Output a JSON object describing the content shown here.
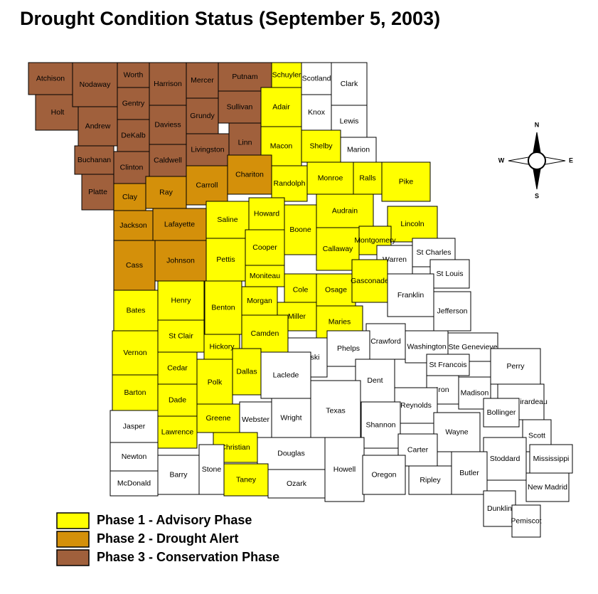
{
  "title": "Drought  Condition Status (September 5, 2003)",
  "base_color": "#ffffff",
  "legend": [
    {
      "label": "Phase 1 - Advisory Phase",
      "color": "#ffff00"
    },
    {
      "label": "Phase 2 - Drought Alert",
      "color": "#d4900a"
    },
    {
      "label": "Phase 3 - Conservation Phase",
      "color": "#a0603c"
    }
  ],
  "compass": {
    "n": "N",
    "s": "S",
    "e": "E",
    "w": "W"
  },
  "counties": [
    {
      "name": "Atchison",
      "phase": 3
    },
    {
      "name": "Holt",
      "phase": 3
    },
    {
      "name": "Nodaway",
      "phase": 3
    },
    {
      "name": "Worth",
      "phase": 3
    },
    {
      "name": "Gentry",
      "phase": 3
    },
    {
      "name": "Harrison",
      "phase": 3
    },
    {
      "name": "Mercer",
      "phase": 3
    },
    {
      "name": "Putnam",
      "phase": 3
    },
    {
      "name": "Schuyler",
      "phase": 1
    },
    {
      "name": "Scotland",
      "phase": 0
    },
    {
      "name": "Clark",
      "phase": 0
    },
    {
      "name": "Andrew",
      "phase": 3
    },
    {
      "name": "DeKalb",
      "phase": 3
    },
    {
      "name": "Daviess",
      "phase": 3
    },
    {
      "name": "Grundy",
      "phase": 3
    },
    {
      "name": "Sullivan",
      "phase": 3
    },
    {
      "name": "Adair",
      "phase": 1
    },
    {
      "name": "Knox",
      "phase": 0
    },
    {
      "name": "Lewis",
      "phase": 0
    },
    {
      "name": "Buchanan",
      "phase": 3
    },
    {
      "name": "Clinton",
      "phase": 3
    },
    {
      "name": "Caldwell",
      "phase": 3
    },
    {
      "name": "Livingston",
      "phase": 3
    },
    {
      "name": "Linn",
      "phase": 3
    },
    {
      "name": "Macon",
      "phase": 1
    },
    {
      "name": "Shelby",
      "phase": 1
    },
    {
      "name": "Marion",
      "phase": 0
    },
    {
      "name": "Platte",
      "phase": 3
    },
    {
      "name": "Clay",
      "phase": 2
    },
    {
      "name": "Ray",
      "phase": 2
    },
    {
      "name": "Carroll",
      "phase": 2
    },
    {
      "name": "Chariton",
      "phase": 2
    },
    {
      "name": "Randolph",
      "phase": 1
    },
    {
      "name": "Monroe",
      "phase": 1
    },
    {
      "name": "Ralls",
      "phase": 1
    },
    {
      "name": "Pike",
      "phase": 1
    },
    {
      "name": "Jackson",
      "phase": 2
    },
    {
      "name": "Lafayette",
      "phase": 2
    },
    {
      "name": "Saline",
      "phase": 1
    },
    {
      "name": "Howard",
      "phase": 1
    },
    {
      "name": "Boone",
      "phase": 1
    },
    {
      "name": "Audrain",
      "phase": 1
    },
    {
      "name": "Lincoln",
      "phase": 1
    },
    {
      "name": "Cass",
      "phase": 2
    },
    {
      "name": "Johnson",
      "phase": 2
    },
    {
      "name": "Pettis",
      "phase": 1
    },
    {
      "name": "Cooper",
      "phase": 1
    },
    {
      "name": "Callaway",
      "phase": 1
    },
    {
      "name": "Montgomery",
      "phase": 1
    },
    {
      "name": "Warren",
      "phase": 0
    },
    {
      "name": "St Charles",
      "phase": 0
    },
    {
      "name": "St Louis",
      "phase": 0
    },
    {
      "name": "Moniteau",
      "phase": 1
    },
    {
      "name": "Cole",
      "phase": 1
    },
    {
      "name": "Osage",
      "phase": 1
    },
    {
      "name": "Gasconade",
      "phase": 1
    },
    {
      "name": "Franklin",
      "phase": 0
    },
    {
      "name": "Jefferson",
      "phase": 0
    },
    {
      "name": "Bates",
      "phase": 1
    },
    {
      "name": "Henry",
      "phase": 1
    },
    {
      "name": "Benton",
      "phase": 1
    },
    {
      "name": "Morgan",
      "phase": 1
    },
    {
      "name": "Miller",
      "phase": 1
    },
    {
      "name": "Maries",
      "phase": 1
    },
    {
      "name": "Crawford",
      "phase": 0
    },
    {
      "name": "Washington",
      "phase": 0
    },
    {
      "name": "Ste Genevieve",
      "phase": 0
    },
    {
      "name": "Vernon",
      "phase": 1
    },
    {
      "name": "St Clair",
      "phase": 1
    },
    {
      "name": "Hickory",
      "phase": 1
    },
    {
      "name": "Camden",
      "phase": 1
    },
    {
      "name": "Pulaski",
      "phase": 0
    },
    {
      "name": "Phelps",
      "phase": 0
    },
    {
      "name": "St Francois",
      "phase": 0
    },
    {
      "name": "Perry",
      "phase": 0
    },
    {
      "name": "Cedar",
      "phase": 1
    },
    {
      "name": "Polk",
      "phase": 1
    },
    {
      "name": "Dallas",
      "phase": 1
    },
    {
      "name": "Laclede",
      "phase": 0
    },
    {
      "name": "Dent",
      "phase": 0
    },
    {
      "name": "Barton",
      "phase": 1
    },
    {
      "name": "Dade",
      "phase": 1
    },
    {
      "name": "Iron",
      "phase": 0
    },
    {
      "name": "Madison",
      "phase": 0
    },
    {
      "name": "Cape Girardeau",
      "phase": 0
    },
    {
      "name": "Reynolds",
      "phase": 0
    },
    {
      "name": "Bollinger",
      "phase": 0
    },
    {
      "name": "Jasper",
      "phase": 0
    },
    {
      "name": "Lawrence",
      "phase": 1
    },
    {
      "name": "Greene",
      "phase": 1
    },
    {
      "name": "Webster",
      "phase": 0
    },
    {
      "name": "Wright",
      "phase": 0
    },
    {
      "name": "Texas",
      "phase": 0
    },
    {
      "name": "Shannon",
      "phase": 0
    },
    {
      "name": "Wayne",
      "phase": 0
    },
    {
      "name": "Scott",
      "phase": 0
    },
    {
      "name": "Newton",
      "phase": 0
    },
    {
      "name": "Christian",
      "phase": 1
    },
    {
      "name": "Douglas",
      "phase": 0
    },
    {
      "name": "Carter",
      "phase": 0
    },
    {
      "name": "Stoddard",
      "phase": 0
    },
    {
      "name": "Mississippi",
      "phase": 0
    },
    {
      "name": "Howell",
      "phase": 0
    },
    {
      "name": "Barry",
      "phase": 0
    },
    {
      "name": "Stone",
      "phase": 0
    },
    {
      "name": "Oregon",
      "phase": 0
    },
    {
      "name": "Ripley",
      "phase": 0
    },
    {
      "name": "Butler",
      "phase": 0
    },
    {
      "name": "McDonald",
      "phase": 0
    },
    {
      "name": "Taney",
      "phase": 1
    },
    {
      "name": "Ozark",
      "phase": 0
    },
    {
      "name": "New Madrid",
      "phase": 0
    },
    {
      "name": "Dunklin",
      "phase": 0
    },
    {
      "name": "Pemiscot",
      "phase": 0
    }
  ]
}
